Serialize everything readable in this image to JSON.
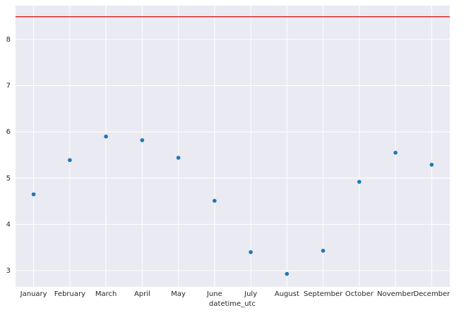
{
  "chart_data": {
    "type": "scatter",
    "x_label": "datetime_utc",
    "categories": [
      "January",
      "February",
      "March",
      "April",
      "May",
      "June",
      "July",
      "August",
      "September",
      "October",
      "November",
      "December"
    ],
    "values": [
      4.65,
      5.39,
      5.9,
      5.82,
      5.44,
      4.51,
      3.4,
      2.93,
      3.43,
      4.92,
      5.55,
      5.29
    ],
    "color": "#1f77b4",
    "reference_line": {
      "value": 8.49,
      "color": "#d62728"
    },
    "ylim": [
      2.65,
      8.73
    ],
    "yticks": [
      3,
      4,
      5,
      6,
      7,
      8
    ],
    "grid": true
  }
}
